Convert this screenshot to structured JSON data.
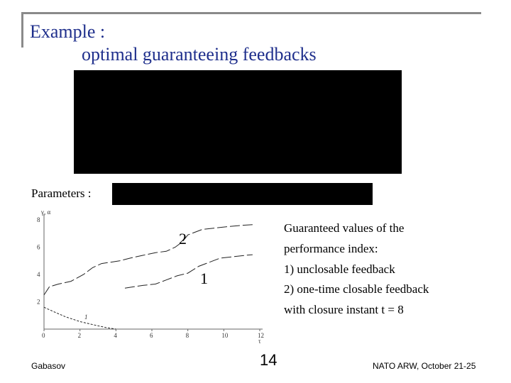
{
  "slide": {
    "title_line1": "Example :",
    "title_line2": "optimal guaranteeing feedbacks",
    "params_label": "Parameters :",
    "caption": [
      "Guaranteed values of the",
      "performance index:",
      "1)  unclosable feedback",
      "2)  one-time closable feedback",
      "     with closure instant t = 8"
    ]
  },
  "footer": {
    "author": "Gabasov",
    "page_number": "14",
    "event": "NATO ARW, October 21-25"
  },
  "chart_data": {
    "type": "line",
    "ylabel": "γ, α",
    "xlabel": "τ",
    "xlim": [
      0,
      12
    ],
    "ylim": [
      0,
      8
    ],
    "x_ticks": [
      "0",
      "2",
      "4",
      "6",
      "8",
      "10",
      "12"
    ],
    "y_ticks": [
      "2",
      "4",
      "6",
      "8"
    ],
    "grid": false,
    "series": [
      {
        "name": "2",
        "x": [
          0,
          0.3,
          0.8,
          1.5,
          2.2,
          2.7,
          3.2,
          3.7,
          4.2,
          4.8,
          5.5,
          6.2,
          6.8,
          7.3,
          7.7,
          8.0,
          8.8,
          9.5,
          10.2,
          11.0,
          11.6
        ],
        "y": [
          2.5,
          3.1,
          3.3,
          3.5,
          4.0,
          4.5,
          4.8,
          4.9,
          5.0,
          5.2,
          5.4,
          5.6,
          5.7,
          6.0,
          6.4,
          6.9,
          7.3,
          7.4,
          7.5,
          7.6,
          7.65
        ]
      },
      {
        "name": "1",
        "x": [
          4.5,
          5.0,
          5.5,
          6.2,
          6.8,
          7.4,
          8.0,
          8.6,
          9.2,
          9.8,
          10.5,
          11.2,
          11.6
        ],
        "y": [
          3.0,
          3.1,
          3.2,
          3.3,
          3.6,
          3.9,
          4.1,
          4.6,
          4.9,
          5.2,
          5.3,
          5.4,
          5.45
        ]
      },
      {
        "name": "",
        "x": [
          0,
          0.5,
          1.2,
          2.0,
          2.8,
          3.5,
          4.0
        ],
        "y": [
          1.6,
          1.3,
          0.9,
          0.55,
          0.3,
          0.1,
          0.0
        ]
      }
    ],
    "annotations": [
      "2",
      "1",
      "1"
    ]
  }
}
